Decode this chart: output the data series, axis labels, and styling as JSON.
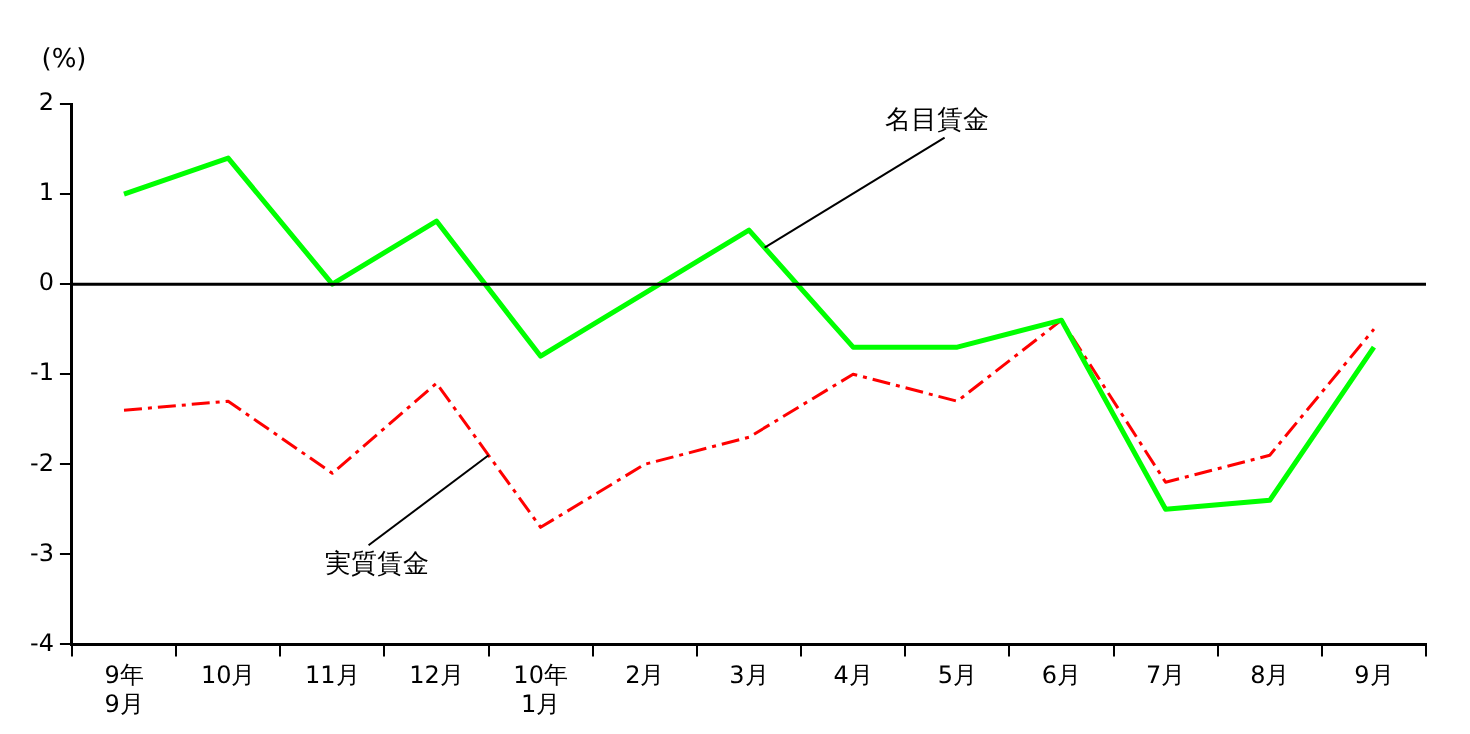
{
  "chart_data": {
    "type": "line",
    "ylabel": "(%)",
    "categories": [
      "9年\n9月",
      "10月",
      "11月",
      "12月",
      "10年\n1月",
      "2月",
      "3月",
      "4月",
      "5月",
      "6月",
      "7月",
      "8月",
      "9月"
    ],
    "series": [
      {
        "name": "名目賃金",
        "color": "#00ff00",
        "line_style": "solid",
        "values": [
          1.0,
          1.4,
          0.0,
          0.7,
          -0.8,
          -0.1,
          0.6,
          -0.7,
          -0.7,
          -0.4,
          -2.5,
          -2.4,
          -0.7
        ]
      },
      {
        "name": "実質賃金",
        "color": "#ff0000",
        "line_style": "dashed",
        "values": [
          -1.4,
          -1.3,
          -2.1,
          -1.1,
          -2.7,
          -2.0,
          -1.7,
          -1.0,
          -1.3,
          -0.4,
          -2.2,
          -1.9,
          -0.5
        ]
      }
    ],
    "ylim": [
      -4,
      2
    ],
    "yticks": [
      -4,
      -3,
      -2,
      -1,
      0,
      1,
      2
    ],
    "ref_lines": [
      {
        "axis": "y",
        "value": 0,
        "color": "#000000"
      }
    ],
    "grid": false,
    "legend": false,
    "marker": "none"
  }
}
